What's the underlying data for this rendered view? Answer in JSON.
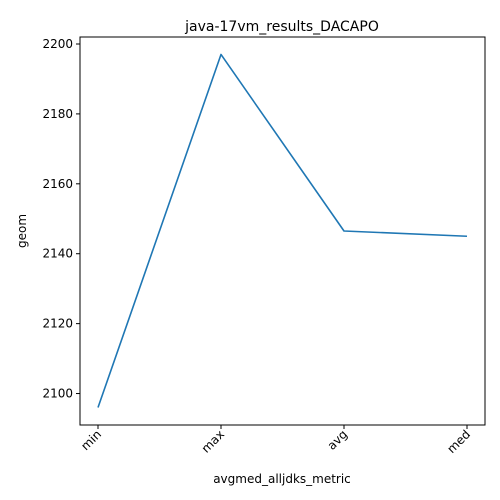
{
  "chart_data": {
    "type": "line",
    "title": "java-17vm_results_DACAPO",
    "xlabel": "avgmed_alljdks_metric",
    "ylabel": "geom",
    "categories": [
      "min",
      "max",
      "avg",
      "med"
    ],
    "series": [
      {
        "values": [
          2096,
          2197,
          2146.5,
          2145
        ]
      }
    ],
    "ylim": [
      2091,
      2202
    ],
    "yticks": [
      2100,
      2120,
      2140,
      2160,
      2180,
      2200
    ],
    "ytick_labels": [
      "2100",
      "2120",
      "2140",
      "2160",
      "2180",
      "2200"
    ],
    "grid": false,
    "legend": "none",
    "colors": {
      "line": "#1f77b4",
      "axes": "#000000",
      "background": "#ffffff"
    }
  }
}
